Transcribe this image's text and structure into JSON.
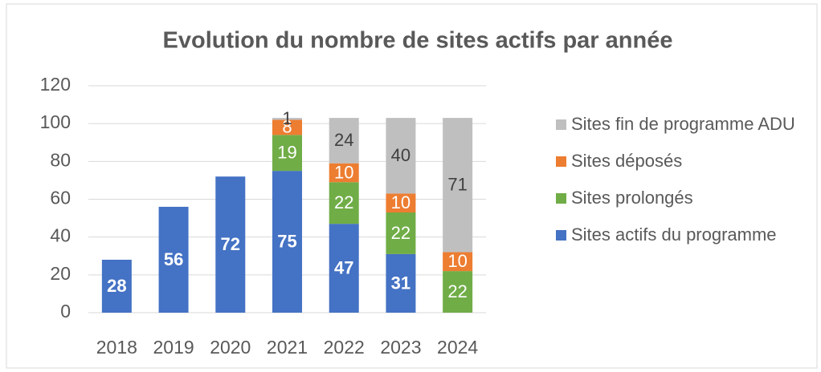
{
  "chart_data": {
    "type": "stacked_bar",
    "title": "Evolution du nombre de sites actifs par année",
    "categories": [
      "2018",
      "2019",
      "2020",
      "2021",
      "2022",
      "2023",
      "2024"
    ],
    "series": [
      {
        "name": "Sites actifs du programme",
        "color": "#4472c4",
        "label_color": "#ffffff",
        "label_weight": "bold",
        "values": [
          28,
          56,
          72,
          75,
          47,
          31,
          null
        ]
      },
      {
        "name": "Sites prolongés",
        "color": "#70ad47",
        "label_color": "#ffffff",
        "label_weight": "normal",
        "values": [
          null,
          null,
          null,
          19,
          22,
          22,
          22
        ]
      },
      {
        "name": "Sites déposés",
        "color": "#ed7d31",
        "label_color": "#ffffff",
        "label_weight": "normal",
        "values": [
          null,
          null,
          null,
          8,
          10,
          10,
          10
        ]
      },
      {
        "name": "Sites fin de programme ADU",
        "color": "#bfbfbf",
        "label_color": "#404040",
        "label_weight": "normal",
        "values": [
          null,
          null,
          null,
          1,
          24,
          40,
          71
        ]
      }
    ],
    "ylim": [
      0,
      120
    ],
    "yticks": [
      0,
      20,
      40,
      60,
      80,
      100,
      120
    ],
    "grid": true,
    "legend": "right"
  }
}
